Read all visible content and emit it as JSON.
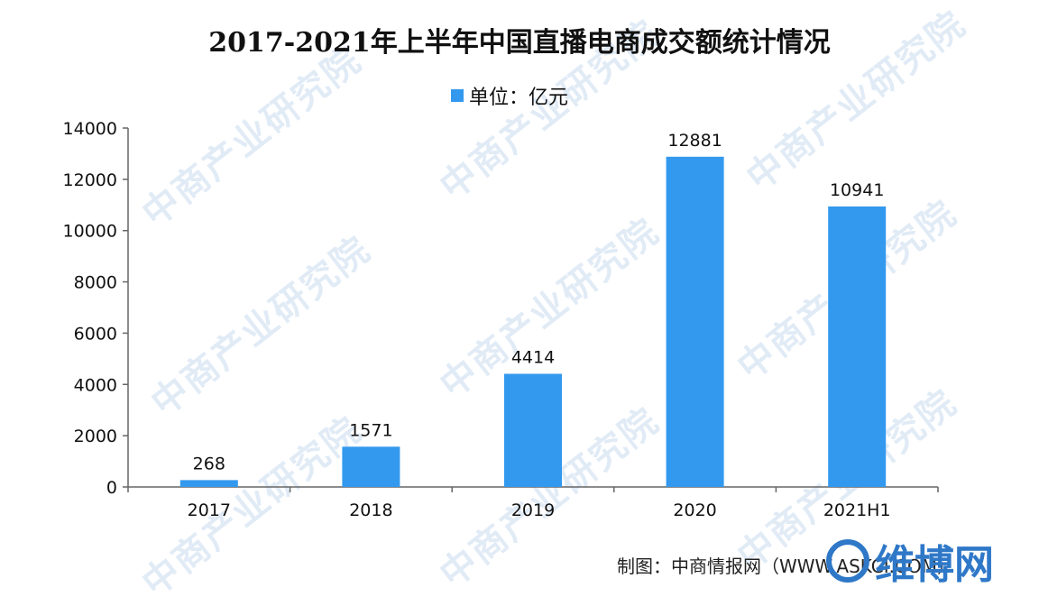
{
  "chart_data": {
    "type": "bar",
    "title": "2017-2021年上半年中国直播电商成交额统计情况",
    "legend_label": "单位：亿元",
    "legend_position": "top",
    "categories": [
      "2017",
      "2018",
      "2019",
      "2020",
      "2021H1"
    ],
    "series": [
      {
        "name": "单位：亿元",
        "values": [
          268,
          1571,
          4414,
          12881,
          10941
        ]
      }
    ],
    "data_labels": [
      "268",
      "1571",
      "4414",
      "12881",
      "10941"
    ],
    "yticks": [
      "0",
      "2000",
      "4000",
      "6000",
      "8000",
      "10000",
      "12000",
      "14000"
    ],
    "ylim": [
      0,
      14000
    ],
    "xlabel": "",
    "ylabel": "",
    "grid": false,
    "bar_color": "#3399ee"
  },
  "footer": {
    "credit": "制图：中商情报网（WWW.ASKCI.COM）",
    "brand_name": "维博网"
  },
  "watermark": {
    "text": "中商产业研究院",
    "color": "#c9dcef"
  }
}
